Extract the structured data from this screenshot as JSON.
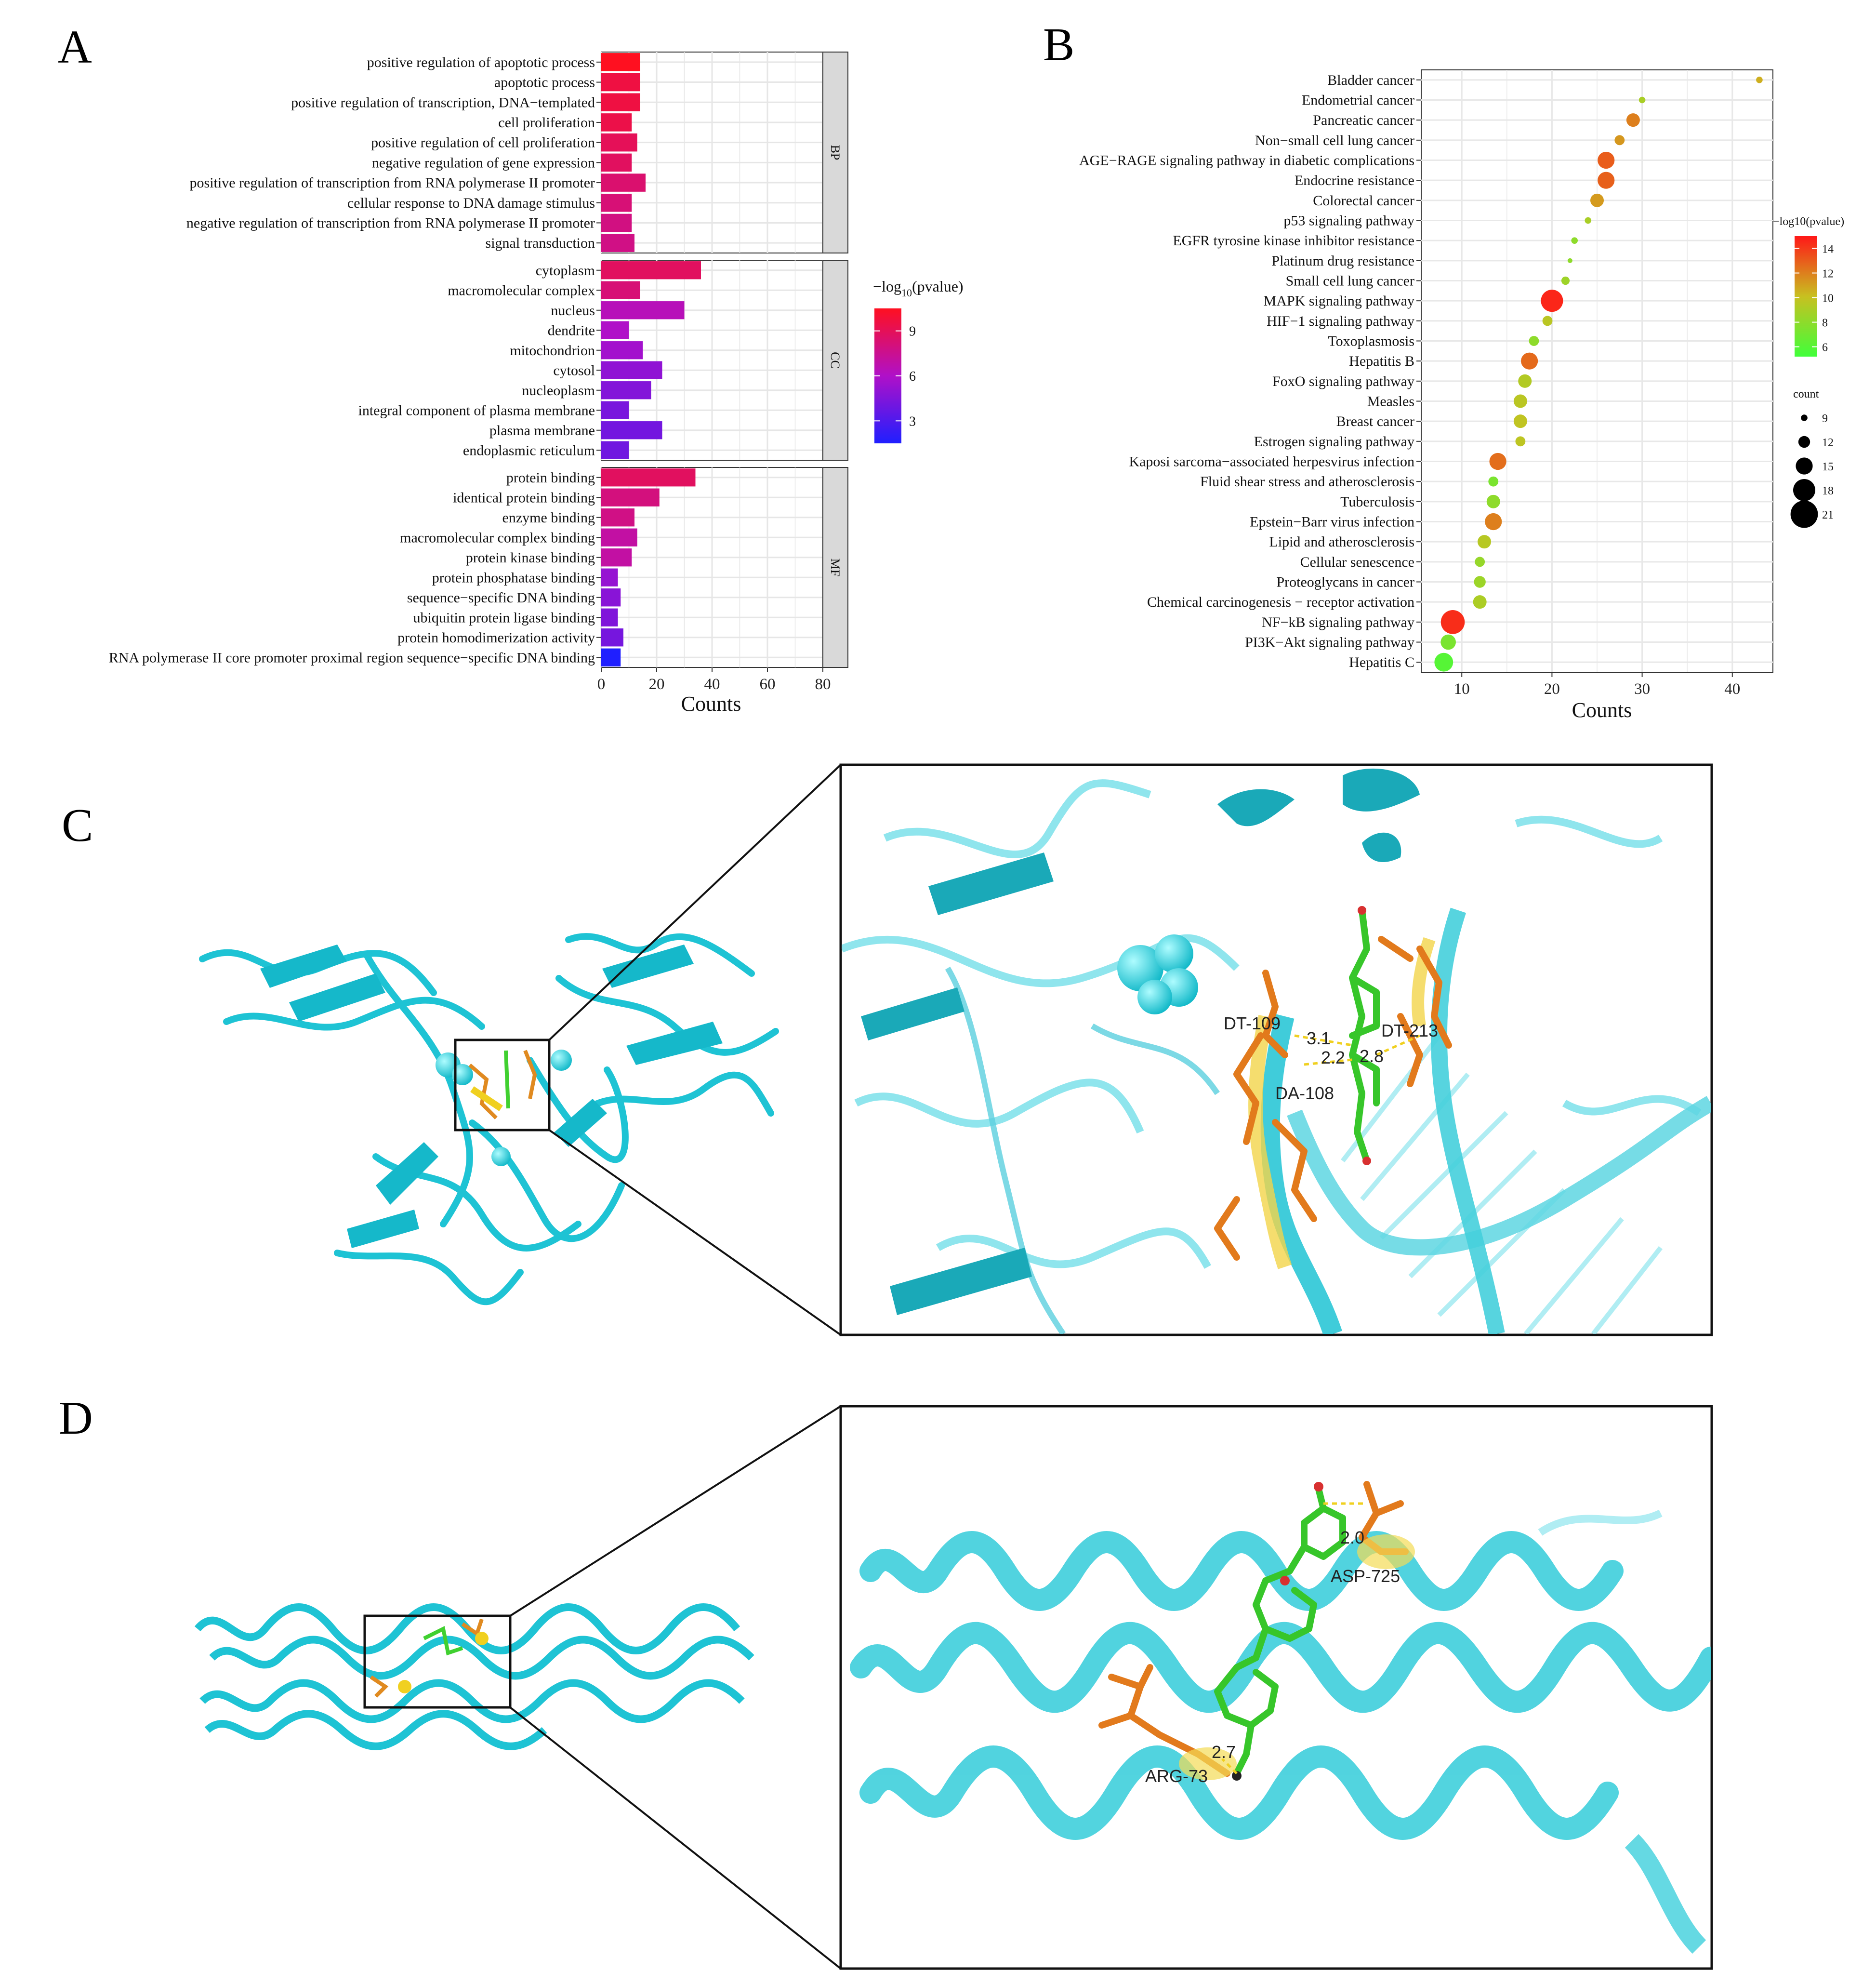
{
  "panels": {
    "a": "A",
    "b": "B",
    "c": "C",
    "d": "D"
  },
  "chart_data": [
    {
      "type": "bar",
      "orientation": "horizontal",
      "xlabel": "Counts",
      "xlim": [
        0,
        80
      ],
      "xticks": [
        "0",
        "20",
        "40",
        "60",
        "80"
      ],
      "legend_title_prefix": "−log",
      "legend_title_sub": "10",
      "legend_title_suffix": "(pvalue)",
      "legend_ticks": [
        3,
        6,
        9
      ],
      "color_range": [
        1.5,
        10.5
      ],
      "colors": {
        "low": "#1f1fff",
        "mid": "#b010c8",
        "high": "#ff1020"
      },
      "facets": [
        {
          "strip": "BP",
          "categories": [
            "positive regulation of apoptotic process",
            "apoptotic process",
            "positive regulation of transcription, DNA−templated",
            "cell proliferation",
            "positive regulation of cell proliferation",
            "negative regulation of gene expression",
            "positive regulation of transcription from RNA polymerase II promoter",
            "cellular response to DNA damage stimulus",
            "negative regulation of transcription from RNA polymerase II promoter",
            "signal transduction"
          ],
          "values": [
            14,
            14,
            14,
            11,
            13,
            11,
            16,
            11,
            11,
            12
          ],
          "color_values": [
            10.5,
            9.6,
            9.6,
            9.4,
            9.0,
            8.8,
            8.4,
            8.2,
            7.9,
            7.8
          ]
        },
        {
          "strip": "CC",
          "categories": [
            "cytoplasm",
            "macromolecular complex",
            "nucleus",
            "dendrite",
            "mitochondrion",
            "cytosol",
            "nucleoplasm",
            "integral component of plasma membrane",
            "plasma membrane",
            "endoplasmic reticulum"
          ],
          "values": [
            36,
            14,
            30,
            10,
            15,
            22,
            18,
            10,
            22,
            10
          ],
          "color_values": [
            8.8,
            8.2,
            6.4,
            6.0,
            5.6,
            5.0,
            4.6,
            4.3,
            4.1,
            4.0
          ]
        },
        {
          "strip": "MF",
          "categories": [
            "protein binding",
            "identical protein binding",
            "enzyme binding",
            "macromolecular complex binding",
            "protein kinase binding",
            "protein phosphatase binding",
            "sequence−specific DNA binding",
            "ubiquitin protein ligase binding",
            "protein homodimerization activity",
            "RNA polymerase II core promoter proximal region sequence−specific DNA binding"
          ],
          "values": [
            34,
            21,
            12,
            13,
            11,
            6,
            7,
            6,
            8,
            7
          ],
          "color_values": [
            8.8,
            8.0,
            7.8,
            7.0,
            7.0,
            5.2,
            4.8,
            4.5,
            4.2,
            1.5
          ]
        }
      ]
    },
    {
      "type": "scatter",
      "xlabel": "Counts",
      "xlim": [
        5.5,
        44.5
      ],
      "xticks": [
        "10",
        "20",
        "30",
        "40"
      ],
      "color_legend_title": "−log10(pvalue)",
      "color_legend_ticks": [
        6,
        8,
        10,
        12,
        14
      ],
      "color_range": [
        5.2,
        15
      ],
      "colors": {
        "low": "#40ff3a",
        "mid": "#c8c020",
        "high": "#ff1818"
      },
      "size_legend_title": "count",
      "size_legend_values": [
        9,
        12,
        15,
        18,
        21
      ],
      "categories": [
        "Bladder cancer",
        "Endometrial cancer",
        "Pancreatic cancer",
        "Non−small cell lung cancer",
        "AGE−RAGE signaling pathway in diabetic complications",
        "Endocrine resistance",
        "Colorectal cancer",
        "p53 signaling pathway",
        "EGFR tyrosine kinase inhibitor resistance",
        "Platinum drug resistance",
        "Small cell lung cancer",
        "MAPK signaling pathway",
        "HIF−1 signaling pathway",
        "Toxoplasmosis",
        "Hepatitis B",
        "FoxO signaling pathway",
        "Measles",
        "Breast cancer",
        "Estrogen signaling pathway",
        "Kaposi sarcoma−associated herpesvirus infection",
        "Fluid shear stress and atherosclerosis",
        "Tuberculosis",
        "Epstein−Barr virus infection",
        "Lipid and atherosclerosis",
        "Cellular senescence",
        "Proteoglycans in cancer",
        "Chemical carcinogenesis − receptor activation",
        "NF−kB signaling pathway",
        "PI3K−Akt signaling pathway",
        "Hepatitis C"
      ],
      "x": [
        43,
        30,
        29,
        27.5,
        26,
        26,
        25,
        24,
        22.5,
        22,
        21.5,
        20,
        19.5,
        18,
        17.5,
        17,
        16.5,
        16.5,
        16.5,
        14,
        13.5,
        13.5,
        13.5,
        12.5,
        12,
        12,
        12,
        9,
        8.5,
        8
      ],
      "count": [
        9,
        9,
        13,
        11,
        15,
        15,
        13,
        9,
        9,
        8,
        10,
        18,
        11,
        11,
        15,
        13,
        13,
        13,
        11,
        15,
        11,
        13,
        15,
        13,
        11,
        12,
        13,
        19,
        14,
        16
      ],
      "color": [
        10.6,
        9.0,
        12.0,
        11.3,
        13.0,
        12.9,
        11.2,
        9.0,
        8.0,
        8.0,
        8.6,
        14.6,
        9.6,
        8.0,
        12.6,
        9.3,
        9.6,
        9.8,
        9.7,
        12.5,
        7.3,
        8.0,
        12.0,
        9.5,
        8.3,
        8.5,
        9.1,
        14.4,
        7.3,
        6.0
      ]
    }
  ],
  "molecular": {
    "c_labels": [
      "DT-109",
      "3.1",
      "2.2",
      "2.8",
      "DT-213",
      "DA-108"
    ],
    "d_labels": [
      "2.0",
      "ASP-725",
      "2.7",
      "ARG-73"
    ]
  }
}
